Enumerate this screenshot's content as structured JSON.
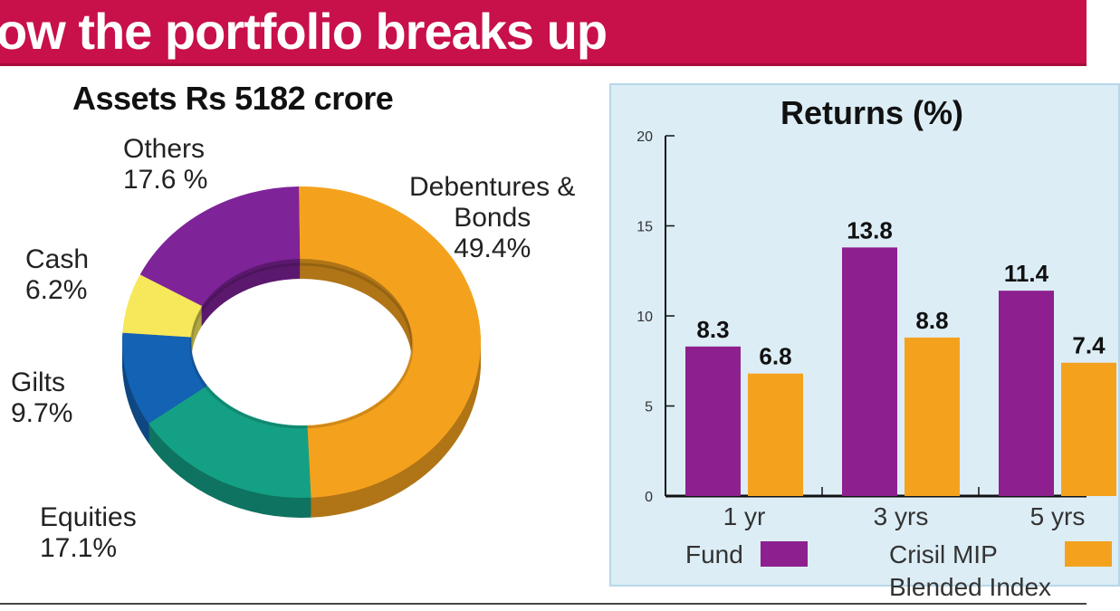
{
  "banner": {
    "title": "ow the portfolio breaks up"
  },
  "chart_data": [
    {
      "type": "pie",
      "title": "Assets Rs 5182 crore",
      "slices": [
        {
          "label": "Debentures & Bonds",
          "label_lines": [
            "Debentures &",
            "Bonds"
          ],
          "value": 49.4,
          "text": "49.4%",
          "color": "#f4a21e"
        },
        {
          "label": "Equities",
          "label_lines": [
            "Equities"
          ],
          "value": 17.1,
          "text": "17.1%",
          "color": "#14a085"
        },
        {
          "label": "Gilts",
          "label_lines": [
            "Gilts"
          ],
          "value": 9.7,
          "text": "9.7%",
          "color": "#1462b4"
        },
        {
          "label": "Cash",
          "label_lines": [
            "Cash"
          ],
          "value": 6.2,
          "text": "6.2%",
          "color": "#f6e85a"
        },
        {
          "label": "Others",
          "label_lines": [
            "Others"
          ],
          "value": 17.6,
          "text": "17.6 %",
          "color": "#7f2399"
        }
      ]
    },
    {
      "type": "bar",
      "title": "Returns (%)",
      "categories": [
        "1 yr",
        "3 yrs",
        "5 yrs"
      ],
      "series": [
        {
          "name": "Fund",
          "values": [
            8.3,
            13.8,
            11.4
          ],
          "labels": [
            "8.3",
            "13.8",
            "11.4"
          ],
          "color": "#8e1f8e"
        },
        {
          "name": "Crisil MIP Blended Index",
          "name_lines": [
            "Crisil MIP",
            "Blended Index"
          ],
          "values": [
            6.8,
            8.8,
            7.4
          ],
          "labels": [
            "6.8",
            "8.8",
            "7.4"
          ],
          "color": "#f4a21e"
        }
      ],
      "ylim": [
        0,
        20
      ],
      "yticks": [
        "0",
        "5",
        "10",
        "15",
        "20"
      ],
      "grid": false,
      "legend": "bottom"
    }
  ]
}
